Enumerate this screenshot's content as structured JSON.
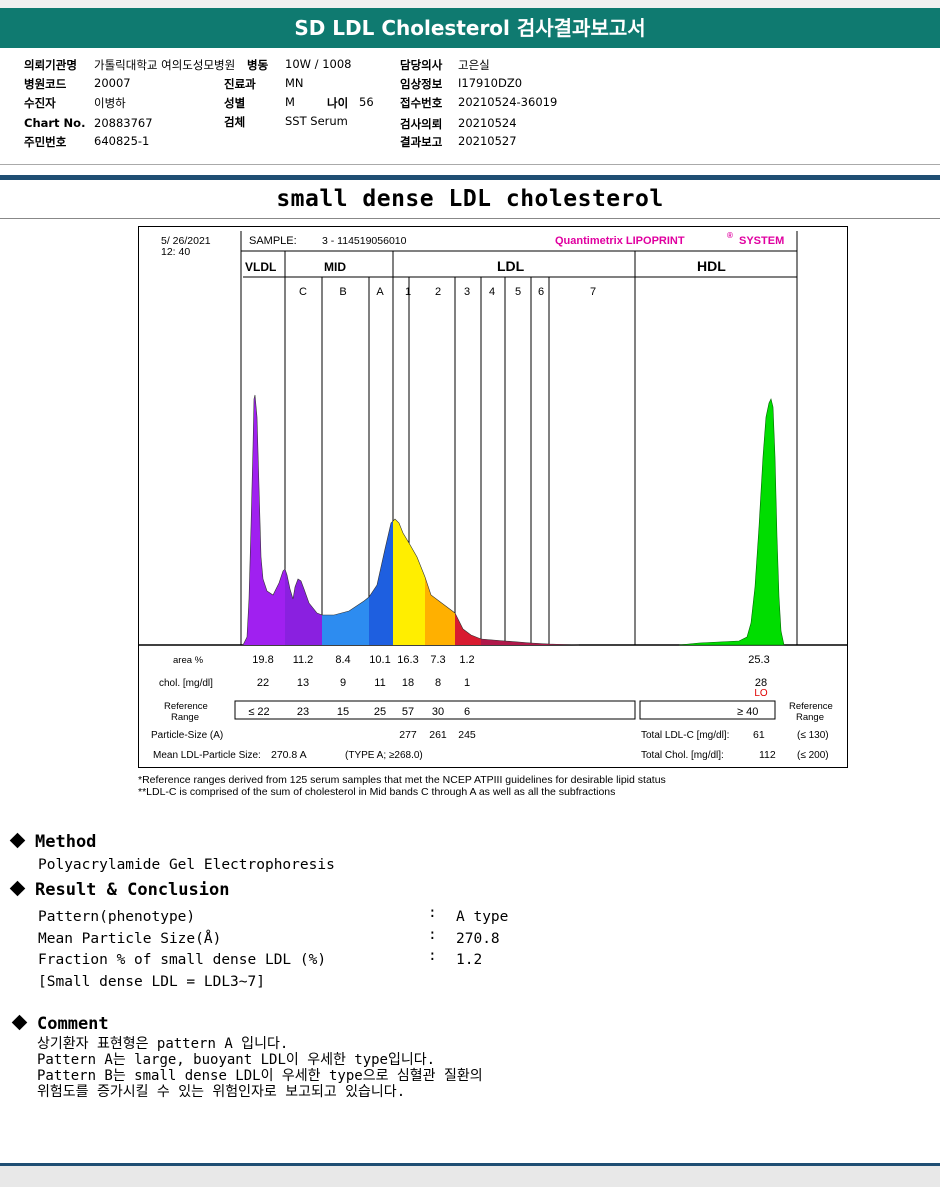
{
  "header": {
    "title": "SD LDL Cholesterol 검사결과보고서"
  },
  "patient": {
    "col1": [
      {
        "label": "의뢰기관명",
        "value": "가톨릭대학교 여의도성모병원"
      },
      {
        "label": "병원코드",
        "value": "20007"
      },
      {
        "label": "수진자",
        "value": "이병하"
      },
      {
        "label": "Chart No.",
        "value": "20883767"
      },
      {
        "label": "주민번호",
        "value": "640825-1"
      }
    ],
    "ward": {
      "label": "병동",
      "value": "10W / 1008"
    },
    "dept": {
      "label": "진료과",
      "value": "MN"
    },
    "sex": {
      "label": "성별",
      "value": "M"
    },
    "age": {
      "label": "나이",
      "value": "56"
    },
    "specimen": {
      "label": "검체",
      "value": "SST Serum"
    },
    "col3": [
      {
        "label": "담당의사",
        "value": "고은실"
      },
      {
        "label": "임상정보",
        "value": "I17910DZ0"
      },
      {
        "label": "접수번호",
        "value": "20210524-36019"
      },
      {
        "label": "검사의뢰",
        "value": "20210524"
      },
      {
        "label": "결과보고",
        "value": "20210527"
      }
    ]
  },
  "doc_title": "small dense LDL cholesterol",
  "chart": {
    "date": "5/ 26/2021",
    "time": "12: 40",
    "sample_label": "SAMPLE:",
    "sample_id": "3 - 114519056010",
    "brand": "Quantimetrix LIPOPRINT",
    "brand_reg": "®",
    "brand_system": "SYSTEM",
    "groups": {
      "vldl": "VLDL",
      "mid": "MID",
      "ldl": "LDL",
      "hdl": "HDL"
    },
    "band_labels": [
      "C",
      "B",
      "A",
      "1",
      "2",
      "3",
      "4",
      "5",
      "6",
      "7"
    ],
    "row_labels": {
      "area": "area %",
      "chol": "chol. [mg/dl]",
      "ref1": "Reference",
      "ref2": "Range",
      "particle": "Particle-Size (A)",
      "mean": "Mean LDL-Particle Size:"
    },
    "area": [
      "19.8",
      "11.2",
      "8.4",
      "10.1",
      "16.3",
      "7.3",
      "1.2"
    ],
    "hdl_area": "25.3",
    "chol": [
      "22",
      "13",
      "9",
      "11",
      "18",
      "8",
      "1"
    ],
    "hdl_chol": "28",
    "hdl_flag": "LO",
    "ref": [
      "≤ 22",
      "23",
      "15",
      "25",
      "57",
      "30",
      "6"
    ],
    "hdl_ref": "≥  40",
    "particle_sizes": [
      "277",
      "261",
      "245"
    ],
    "mean_value": "270.8  A",
    "mean_type": "(TYPE A; ≥268.0)",
    "total_ldl_label": "Total LDL-C [mg/dl]:",
    "total_ldl_value": "61",
    "total_ldl_ref": "(≤ 130)",
    "total_chol_label": "Total Chol. [mg/dl]:",
    "total_chol_value": "112",
    "total_chol_ref": "(≤ 200)",
    "ref_right1": "Reference",
    "ref_right2": "Range"
  },
  "footnotes": [
    "*Reference ranges derived from 125 serum samples that met the NCEP ATPIII guidelines for desirable lipid status",
    "**LDL-C is comprised of the sum of cholesterol in Mid bands C through A as well as all the subfractions"
  ],
  "method": {
    "heading": "Method",
    "text": "Polyacrylamide Gel Electrophoresis"
  },
  "result": {
    "heading": "Result & Conclusion",
    "rows": [
      {
        "label": "Pattern(phenotype)",
        "sep": ":",
        "value": "A type"
      },
      {
        "label": "Mean Particle Size(Å)",
        "sep": ":",
        "value": "270.8"
      },
      {
        "label": "Fraction % of small dense LDL (%)",
        "sep": ":",
        "value": "1.2"
      }
    ],
    "note": "[Small dense LDL = LDL3~7]"
  },
  "comment": {
    "heading": "Comment",
    "lines": [
      "상기환자 표현형은 pattern A 입니다.",
      "Pattern A는 large, buoyant LDL이 우세한 type입니다.",
      "Pattern B는 small dense LDL이 우세한 type으로 심혈관 질환의",
      "위험도를 증가시킬 수 있는 위험인자로 보고되고 있습니다."
    ]
  },
  "colors": {
    "header_bg": "#0f7a70",
    "vldl": "#a020f0",
    "mid_c": "#8a20e0",
    "mid_b": "#2d8cf0",
    "mid_a": "#1e5fe0",
    "ldl1": "#ffee00",
    "ldl2": "#ffb000",
    "ldl3": "#d81b30",
    "hdl": "#00dd00",
    "brand": "#e000a0",
    "hdl_flag": "#e00000"
  }
}
